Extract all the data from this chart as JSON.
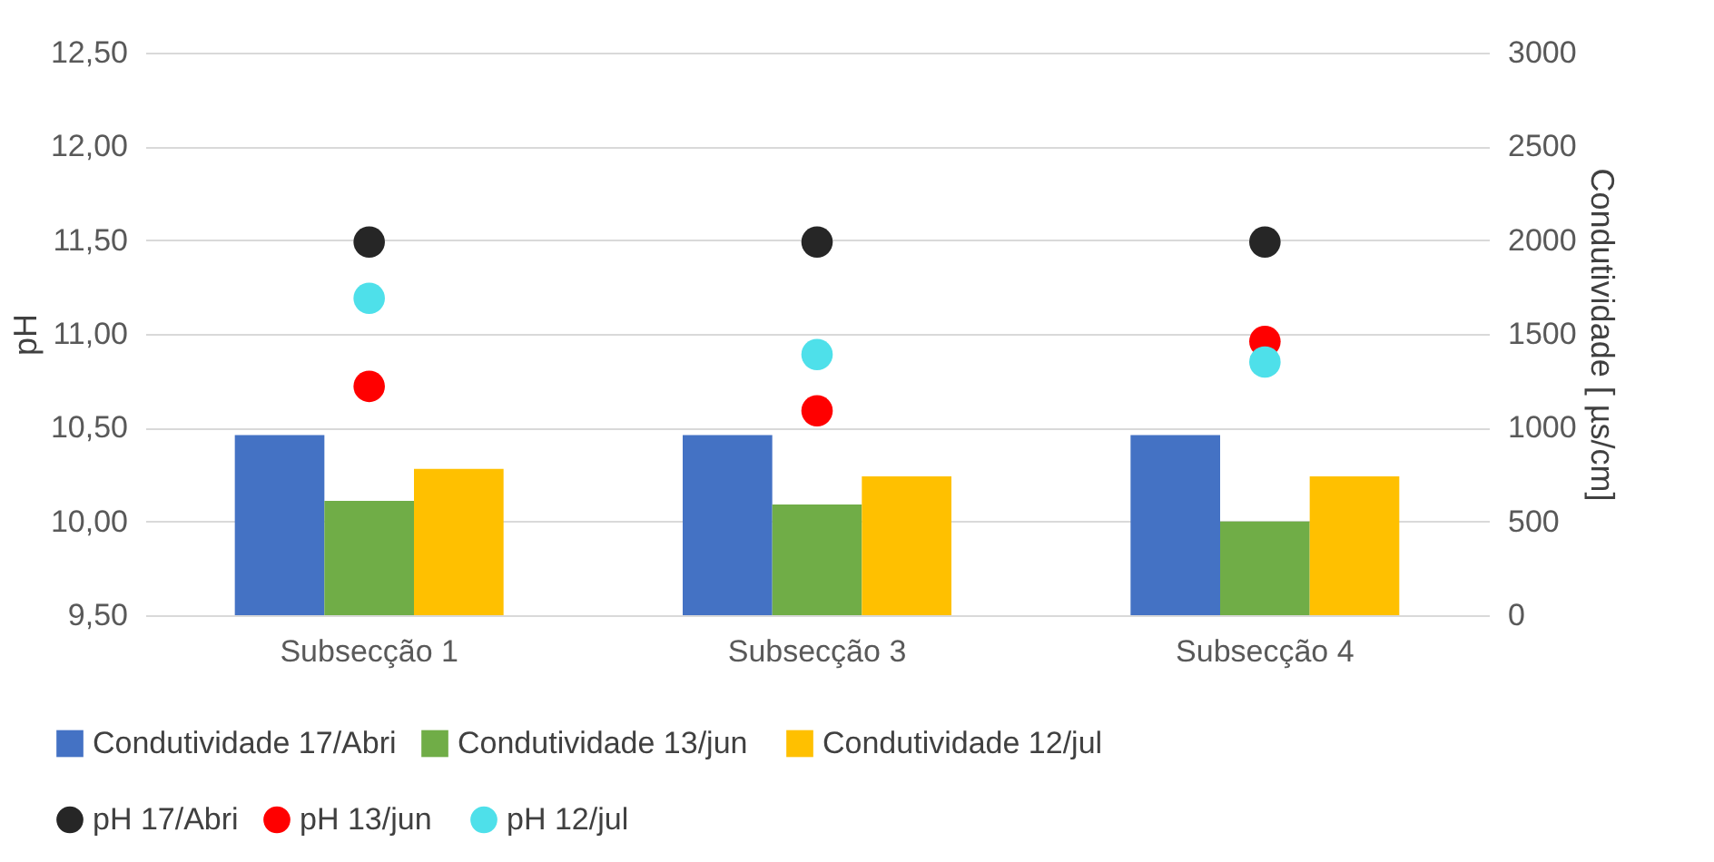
{
  "chart_data": {
    "type": "bar",
    "categories": [
      "Subsecção 1",
      "Subsecção 3",
      "Subsecção 4"
    ],
    "ylabel": "pH",
    "y2label": "Condutividade [ µs/cm]",
    "ylim": [
      9.5,
      12.5
    ],
    "yticks": [
      {
        "value": 9.5,
        "label": "9,50"
      },
      {
        "value": 10,
        "label": "10,00"
      },
      {
        "value": 10.5,
        "label": "10,50"
      },
      {
        "value": 11,
        "label": "11,00"
      },
      {
        "value": 11.5,
        "label": "11,50"
      },
      {
        "value": 12,
        "label": "12,00"
      },
      {
        "value": 12.5,
        "label": "12,50"
      }
    ],
    "y2lim": [
      0,
      3000
    ],
    "y2ticks": [
      0,
      500,
      1000,
      1500,
      2000,
      2500,
      3000
    ],
    "grid": "y",
    "legend": "bottom",
    "marker": "circle",
    "series": [
      {
        "name": "Condutividade 17/Abri",
        "axis": "y2",
        "color": "#4472c4",
        "values": [
          960,
          960,
          960
        ]
      },
      {
        "name": "Condutividade 13/jun",
        "axis": "y2",
        "color": "#70ad47",
        "values": [
          610,
          590,
          500
        ]
      },
      {
        "name": "Condutividade 12/jul",
        "axis": "y2",
        "color": "#ffc000",
        "values": [
          780,
          740,
          740
        ]
      },
      {
        "name": "pH 17/Abri",
        "type": "scatter",
        "color": "#262626",
        "values": [
          11.49,
          11.49,
          11.49
        ]
      },
      {
        "name": "pH 13/jun",
        "type": "scatter",
        "color": "#ff0000",
        "values": [
          10.72,
          10.59,
          10.96
        ]
      },
      {
        "name": "pH 12/jul",
        "type": "scatter",
        "color": "#4ee0ea",
        "values": [
          11.19,
          10.89,
          10.85
        ]
      }
    ]
  }
}
